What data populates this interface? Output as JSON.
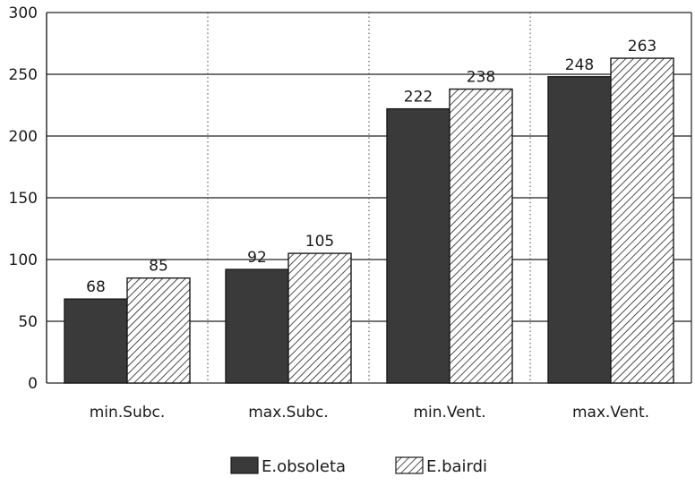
{
  "chart_data": {
    "type": "bar",
    "categories": [
      "min.Subc.",
      "max.Subc.",
      "min.Vent.",
      "max.Vent."
    ],
    "series": [
      {
        "name": "E.obsoleta",
        "values": [
          68,
          92,
          222,
          248
        ],
        "color": "#3a3a3a",
        "pattern": "solid"
      },
      {
        "name": "E.bairdi",
        "values": [
          85,
          105,
          238,
          263
        ],
        "color": "#ffffff",
        "pattern": "diagonal-hatch"
      }
    ],
    "ylim": [
      0,
      300
    ],
    "yticks": [
      0,
      50,
      100,
      150,
      200,
      250,
      300
    ],
    "grid": {
      "horizontal": true,
      "vertical_dotted_separators": true
    },
    "legend": "bottom-center",
    "data_labels": true
  }
}
